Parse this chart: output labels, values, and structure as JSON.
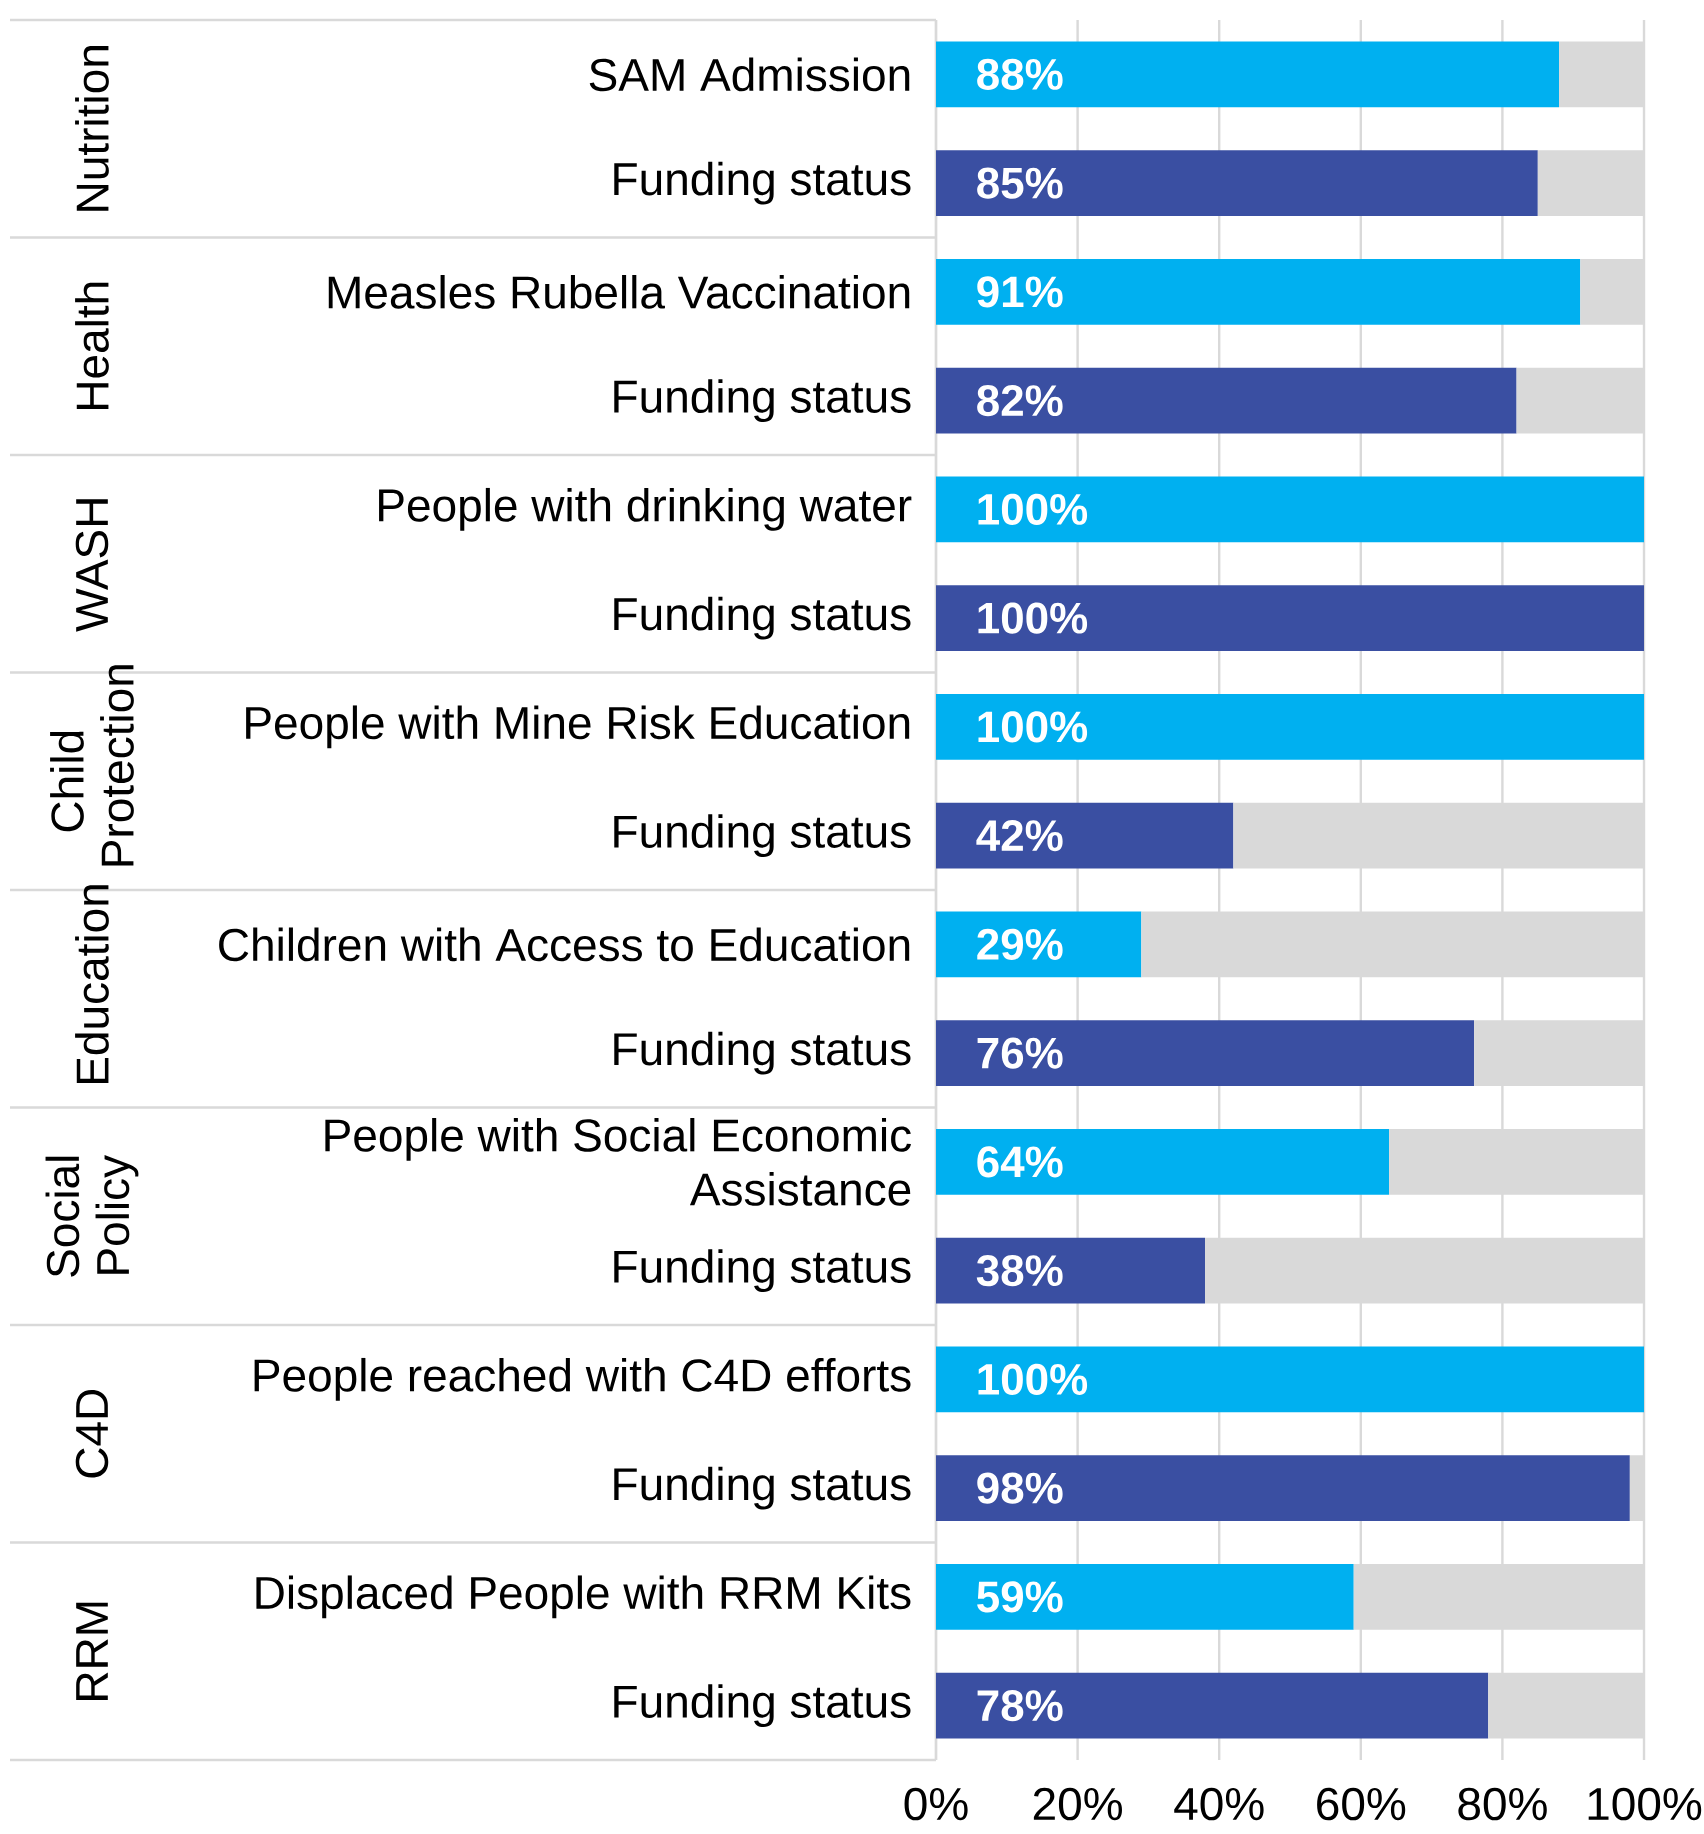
{
  "chart_data": {
    "type": "bar",
    "orientation": "horizontal",
    "stacked": true,
    "grid": "x",
    "categories": [
      "SAM Admission",
      "Funding status",
      "Measles Rubella Vaccination",
      "Funding status",
      "People with drinking water",
      "Funding status",
      "People with Mine Risk Education",
      "Funding status",
      "Children with Access to Education",
      "Funding status",
      "People with Social Economic Assistance",
      "Funding status",
      "People reached with C4D efforts",
      "Funding status",
      "Displaced People with RRM Kits",
      "Funding status"
    ],
    "series": [
      {
        "colors": [
          "#00b0f0",
          "#3a4fa2",
          "#00b0f0",
          "#3a4fa2",
          "#00b0f0",
          "#3a4fa2",
          "#00b0f0",
          "#3a4fa2",
          "#00b0f0",
          "#3a4fa2",
          "#00b0f0",
          "#3a4fa2",
          "#00b0f0",
          "#3a4fa2",
          "#00b0f0",
          "#3a4fa2"
        ],
        "values": [
          88,
          85,
          91,
          82,
          100,
          100,
          100,
          42,
          29,
          76,
          64,
          38,
          100,
          98,
          59,
          78
        ],
        "value_labels": [
          "88%",
          "85%",
          "91%",
          "82%",
          "100%",
          "100%",
          "100%",
          "42%",
          "29%",
          "76%",
          "64%",
          "38%",
          "100%",
          "98%",
          "59%",
          "78%"
        ]
      },
      {
        "color": "#d9d9d9",
        "values": [
          12,
          15,
          9,
          18,
          0,
          0,
          0,
          58,
          71,
          24,
          36,
          62,
          0,
          2,
          41,
          22
        ]
      }
    ],
    "xlim": [
      0,
      100
    ],
    "xticks": [
      {
        "value": 0,
        "label": "0%"
      },
      {
        "value": 20,
        "label": "20%"
      },
      {
        "value": 40,
        "label": "40%"
      },
      {
        "value": 60,
        "label": "60%"
      },
      {
        "value": 80,
        "label": "80%"
      },
      {
        "value": 100,
        "label": "100%"
      }
    ],
    "annotations": [
      "Nutrition",
      "Health",
      "WASH",
      "Child Protection",
      "Education",
      "Social Policy",
      "C4D",
      "RRM"
    ]
  }
}
